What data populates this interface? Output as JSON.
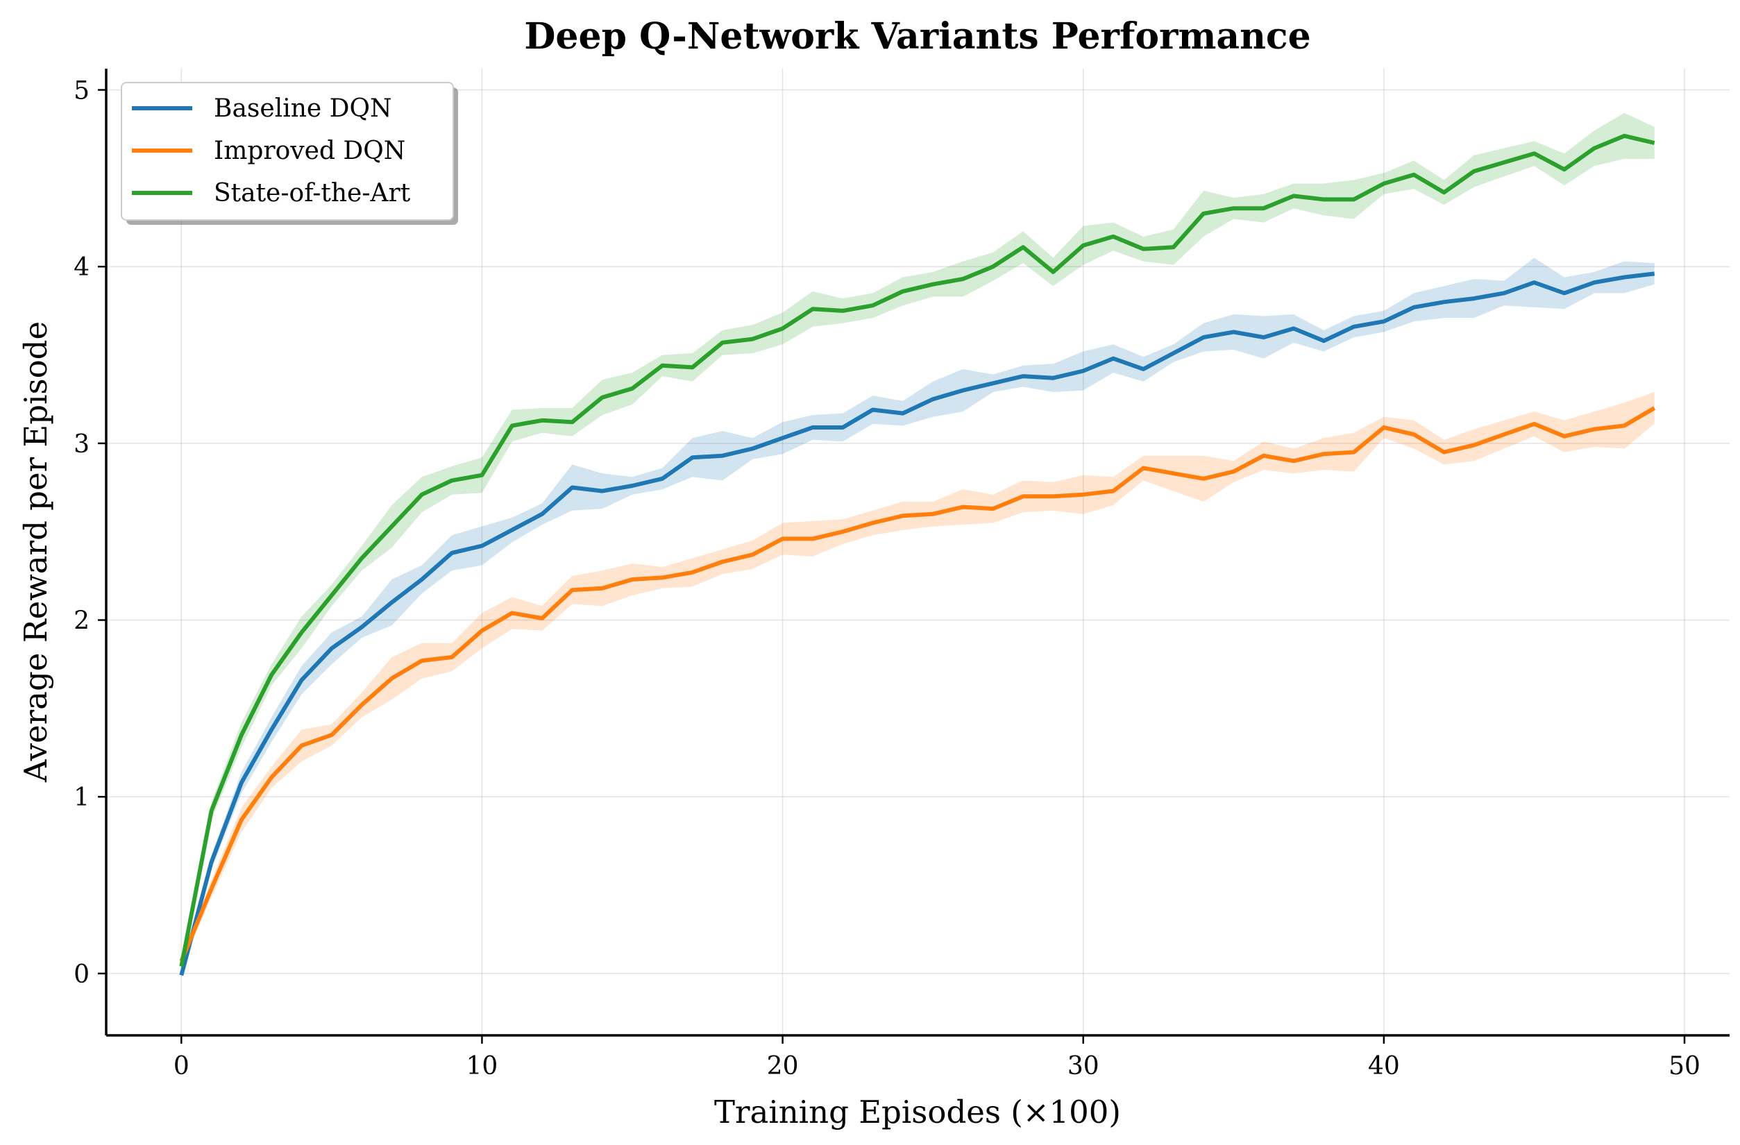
{
  "chart_data": {
    "type": "line",
    "title": "Deep Q-Network Variants Performance",
    "xlabel": "Training Episodes (×100)",
    "ylabel": "Average Reward per Episode",
    "xlim": [
      -2.5,
      51.5
    ],
    "ylim": [
      -0.35,
      5.12
    ],
    "xticks": [
      0,
      10,
      20,
      30,
      40,
      50
    ],
    "yticks": [
      0,
      1,
      2,
      3,
      4,
      5
    ],
    "grid": true,
    "legend_position": "top-left",
    "x": [
      0,
      1,
      2,
      3,
      4,
      5,
      6,
      7,
      8,
      9,
      10,
      11,
      12,
      13,
      14,
      15,
      16,
      17,
      18,
      19,
      20,
      21,
      22,
      23,
      24,
      25,
      26,
      27,
      28,
      29,
      30,
      31,
      32,
      33,
      34,
      35,
      36,
      37,
      38,
      39,
      40,
      41,
      42,
      43,
      44,
      45,
      46,
      47,
      48,
      49
    ],
    "series": [
      {
        "name": "Baseline DQN",
        "color": "#1f77b4",
        "values": [
          -0.01,
          0.63,
          1.08,
          1.38,
          1.66,
          1.84,
          1.96,
          2.1,
          2.23,
          2.38,
          2.42,
          2.51,
          2.6,
          2.75,
          2.73,
          2.76,
          2.8,
          2.92,
          2.93,
          2.97,
          3.03,
          3.09,
          3.09,
          3.19,
          3.17,
          3.25,
          3.3,
          3.34,
          3.38,
          3.37,
          3.41,
          3.48,
          3.42,
          3.51,
          3.6,
          3.63,
          3.6,
          3.65,
          3.58,
          3.66,
          3.69,
          3.77,
          3.8,
          3.82,
          3.85,
          3.91,
          3.85,
          3.91,
          3.94,
          3.96
        ],
        "spread": [
          0.02,
          0.04,
          0.06,
          0.07,
          0.08,
          0.09,
          0.06,
          0.13,
          0.08,
          0.1,
          0.11,
          0.07,
          0.06,
          0.13,
          0.1,
          0.05,
          0.06,
          0.11,
          0.14,
          0.06,
          0.09,
          0.07,
          0.08,
          0.08,
          0.07,
          0.1,
          0.12,
          0.05,
          0.06,
          0.08,
          0.11,
          0.08,
          0.07,
          0.05,
          0.08,
          0.1,
          0.12,
          0.08,
          0.06,
          0.06,
          0.06,
          0.08,
          0.09,
          0.11,
          0.07,
          0.14,
          0.09,
          0.06,
          0.09,
          0.06
        ]
      },
      {
        "name": "Improved DQN",
        "color": "#ff7f0e",
        "values": [
          0.07,
          0.48,
          0.87,
          1.11,
          1.29,
          1.35,
          1.52,
          1.67,
          1.77,
          1.79,
          1.94,
          2.04,
          2.01,
          2.17,
          2.18,
          2.23,
          2.24,
          2.27,
          2.33,
          2.37,
          2.46,
          2.46,
          2.5,
          2.55,
          2.59,
          2.6,
          2.64,
          2.63,
          2.7,
          2.7,
          2.71,
          2.73,
          2.86,
          2.83,
          2.8,
          2.84,
          2.93,
          2.9,
          2.94,
          2.95,
          3.09,
          3.05,
          2.95,
          2.99,
          3.05,
          3.11,
          3.04,
          3.08,
          3.1,
          3.2
        ]
      },
      {
        "name": "State-of-the-Art",
        "color": "#2ca02c",
        "values": [
          0.04,
          0.92,
          1.35,
          1.69,
          1.93,
          2.14,
          2.35,
          2.53,
          2.71,
          2.79,
          2.82,
          3.1,
          3.13,
          3.12,
          3.26,
          3.31,
          3.44,
          3.43,
          3.57,
          3.59,
          3.65,
          3.76,
          3.75,
          3.78,
          3.86,
          3.9,
          3.93,
          4.0,
          4.11,
          3.97,
          4.12,
          4.17,
          4.1,
          4.11,
          4.3,
          4.33,
          4.33,
          4.4,
          4.38,
          4.38,
          4.47,
          4.52,
          4.42,
          4.54,
          4.59,
          4.64,
          4.55,
          4.67,
          4.74,
          4.7
        ]
      }
    ]
  }
}
